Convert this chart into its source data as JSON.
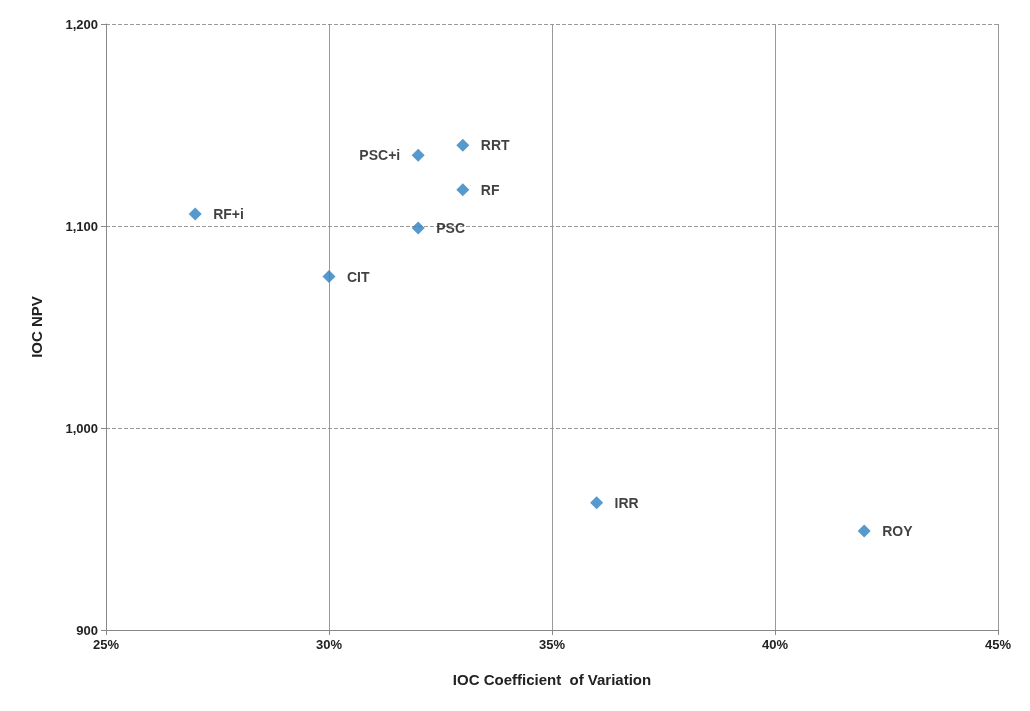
{
  "chart_data": {
    "type": "scatter",
    "xlabel": "IOC Coefficient  of Variation",
    "ylabel": "IOC NPV",
    "x": [
      27,
      30,
      32,
      32,
      33,
      33,
      36,
      42
    ],
    "series": [
      {
        "color": "#2a7fc0",
        "values": [
          1106,
          1075,
          1135,
          1099,
          1140,
          1118,
          963,
          949
        ]
      }
    ],
    "marker": "diamond",
    "grid": true,
    "xlim": [
      25,
      45
    ],
    "xticks": [
      {
        "value": 25,
        "label": "25%"
      },
      {
        "value": 30,
        "label": "30%"
      },
      {
        "value": 35,
        "label": "35%"
      },
      {
        "value": 40,
        "label": "40%"
      },
      {
        "value": 45,
        "label": "45%"
      }
    ],
    "ylim": [
      900,
      1200
    ],
    "yticks": [
      {
        "value": 900,
        "label": "900"
      },
      {
        "value": 1000,
        "label": "1,000"
      },
      {
        "value": 1100,
        "label": "1,100"
      },
      {
        "value": 1200,
        "label": "1,200"
      }
    ],
    "annotations": [
      {
        "text": "RF+i",
        "x": 27,
        "y": 1106
      },
      {
        "text": "CIT",
        "x": 30,
        "y": 1075
      },
      {
        "text": "PSC+i",
        "x": 32,
        "y": 1135
      },
      {
        "text": "PSC",
        "x": 32,
        "y": 1099
      },
      {
        "text": "RRT",
        "x": 33,
        "y": 1140
      },
      {
        "text": "RF",
        "x": 33,
        "y": 1118
      },
      {
        "text": "IRR",
        "x": 36,
        "y": 963
      },
      {
        "text": "ROY",
        "x": 42,
        "y": 949
      }
    ]
  }
}
